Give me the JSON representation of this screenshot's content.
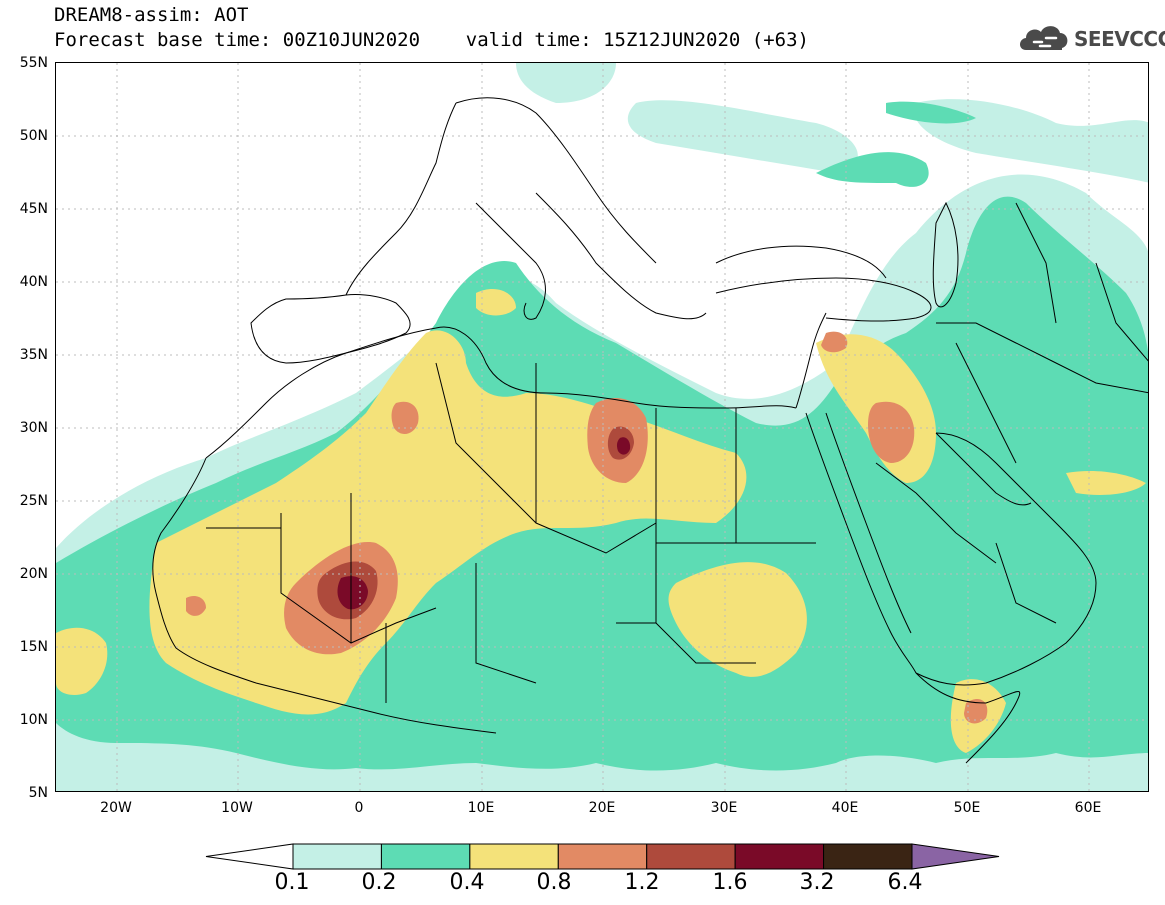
{
  "header": {
    "title_line1": "DREAM8-assim: AOT",
    "title_line2": "Forecast base time: 00Z10JUN2020    valid time: 15Z12JUN2020 (+63)"
  },
  "logo": {
    "text": "SEEVCCC",
    "icon": "cloud-icon",
    "color": "#4a4a4a"
  },
  "axes": {
    "lat_labels": [
      "55N",
      "50N",
      "45N",
      "40N",
      "35N",
      "30N",
      "25N",
      "20N",
      "15N",
      "10N",
      "5N"
    ],
    "lon_labels": [
      "20W",
      "10W",
      "0",
      "10E",
      "20E",
      "30E",
      "40E",
      "50E",
      "60E"
    ]
  },
  "legend": {
    "thresholds": [
      "0.1",
      "0.2",
      "0.4",
      "0.8",
      "1.2",
      "1.6",
      "3.2",
      "6.4"
    ],
    "colors": [
      "#ffffff",
      "#c4f0e6",
      "#5ddcb4",
      "#f4e27a",
      "#e28a64",
      "#ae4a3c",
      "#7a0a28",
      "#3a2414",
      "#8a64a4"
    ]
  }
}
